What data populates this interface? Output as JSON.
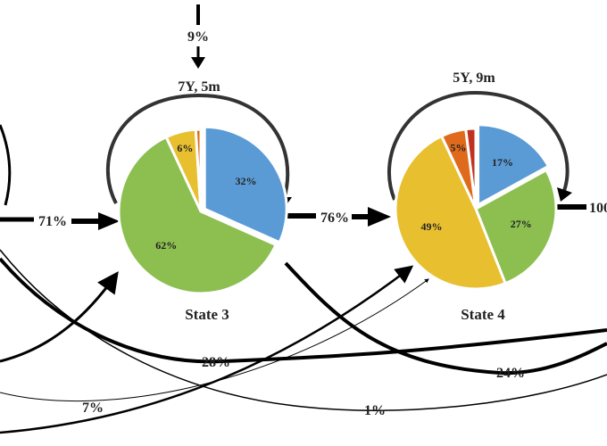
{
  "states": [
    {
      "name": "State 3",
      "duration": "7Y, 5m",
      "slices": [
        {
          "value": 32,
          "label": "32%",
          "color": "#5b9bd5"
        },
        {
          "value": 62,
          "label": "62%",
          "color": "#8cbf50"
        },
        {
          "value": 6,
          "label": "6%",
          "color": "#e8bf2f"
        },
        {
          "value": 1,
          "label": "",
          "color": "#e06a1b"
        }
      ]
    },
    {
      "name": "State 4",
      "duration": "5Y, 9m",
      "slices": [
        {
          "value": 17,
          "label": "17%",
          "color": "#5b9bd5"
        },
        {
          "value": 27,
          "label": "27%",
          "color": "#8cbf50"
        },
        {
          "value": 49,
          "label": "49%",
          "color": "#e8bf2f"
        },
        {
          "value": 5,
          "label": "5%",
          "color": "#e06a1b"
        },
        {
          "value": 2,
          "label": "",
          "color": "#c0321d"
        }
      ]
    }
  ],
  "transitions": {
    "entry_top": "9%",
    "into_state3": "71%",
    "state3_to_state4": "76%",
    "exit_right": "100",
    "long_28": "28%",
    "long_24": "24%",
    "long_7": "7%",
    "long_1": "1%"
  }
}
